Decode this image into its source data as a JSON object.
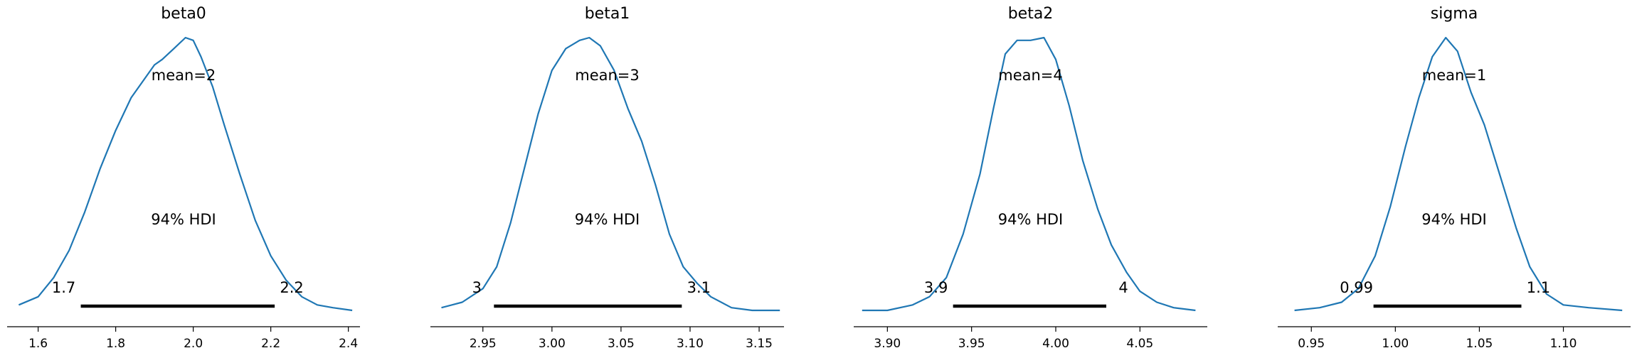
{
  "chart_data": [
    {
      "type": "line",
      "subtype": "posterior-density",
      "title": "beta0",
      "mean_label": "mean=2",
      "hdi_label": "94% HDI",
      "hdi": [
        1.71,
        2.21
      ],
      "hdi_labels": [
        "1.7",
        "2.2"
      ],
      "xlim": [
        1.52,
        2.43
      ],
      "xticks": [
        1.6,
        1.8,
        2.0,
        2.2,
        2.4
      ],
      "xtick_labels": [
        "1.6",
        "1.8",
        "2.0",
        "2.2",
        "2.4"
      ],
      "density": {
        "x": [
          1.55,
          1.6,
          1.64,
          1.68,
          1.72,
          1.76,
          1.8,
          1.84,
          1.88,
          1.9,
          1.92,
          1.95,
          1.98,
          2.0,
          2.02,
          2.05,
          2.08,
          2.12,
          2.16,
          2.2,
          2.24,
          2.28,
          2.32,
          2.36,
          2.41
        ],
        "y": [
          0.02,
          0.05,
          0.12,
          0.22,
          0.36,
          0.52,
          0.66,
          0.78,
          0.86,
          0.9,
          0.92,
          0.96,
          1.0,
          0.99,
          0.93,
          0.82,
          0.68,
          0.5,
          0.33,
          0.2,
          0.11,
          0.05,
          0.02,
          0.01,
          0.0
        ]
      }
    },
    {
      "type": "line",
      "subtype": "posterior-density",
      "title": "beta1",
      "mean_label": "mean=3",
      "hdi_label": "94% HDI",
      "hdi": [
        2.958,
        3.094
      ],
      "hdi_labels": [
        "3",
        "3.1"
      ],
      "xlim": [
        2.912,
        3.168
      ],
      "xticks": [
        2.95,
        3.0,
        3.05,
        3.1,
        3.15
      ],
      "xtick_labels": [
        "2.95",
        "3.00",
        "3.05",
        "3.10",
        "3.15"
      ],
      "density": {
        "x": [
          2.92,
          2.935,
          2.95,
          2.96,
          2.97,
          2.98,
          2.99,
          3.0,
          3.01,
          3.02,
          3.027,
          3.035,
          3.045,
          3.055,
          3.065,
          3.075,
          3.085,
          3.095,
          3.105,
          3.115,
          3.13,
          3.145,
          3.165
        ],
        "y": [
          0.01,
          0.03,
          0.08,
          0.16,
          0.32,
          0.52,
          0.72,
          0.88,
          0.96,
          0.99,
          1.0,
          0.97,
          0.88,
          0.74,
          0.62,
          0.46,
          0.28,
          0.16,
          0.1,
          0.05,
          0.01,
          0.0,
          0.0
        ]
      }
    },
    {
      "type": "line",
      "subtype": "posterior-density",
      "title": "beta2",
      "mean_label": "mean=4",
      "hdi_label": "94% HDI",
      "hdi": [
        3.939,
        4.03
      ],
      "hdi_labels": [
        "3.9",
        "4"
      ],
      "xlim": [
        3.88,
        4.09
      ],
      "xticks": [
        3.9,
        3.95,
        4.0,
        4.05
      ],
      "xtick_labels": [
        "3.90",
        "3.95",
        "4.00",
        "4.05"
      ],
      "density": {
        "x": [
          3.885,
          3.9,
          3.915,
          3.925,
          3.935,
          3.945,
          3.955,
          3.963,
          3.97,
          3.977,
          3.985,
          3.993,
          4.0,
          4.008,
          4.016,
          4.025,
          4.033,
          4.042,
          4.05,
          4.06,
          4.07,
          4.083
        ],
        "y": [
          0.0,
          0.0,
          0.02,
          0.05,
          0.12,
          0.28,
          0.5,
          0.74,
          0.94,
          0.99,
          0.99,
          1.0,
          0.92,
          0.75,
          0.55,
          0.37,
          0.24,
          0.14,
          0.07,
          0.03,
          0.01,
          0.0
        ]
      }
    },
    {
      "type": "line",
      "subtype": "posterior-density",
      "title": "sigma",
      "mean_label": "mean=1",
      "hdi_label": "94% HDI",
      "hdi": [
        0.987,
        1.075
      ],
      "hdi_labels": [
        "0.99",
        "1.1"
      ],
      "xlim": [
        0.93,
        1.14
      ],
      "xticks": [
        0.95,
        1.0,
        1.05,
        1.1
      ],
      "xtick_labels": [
        "0.95",
        "1.00",
        "1.05",
        "1.10"
      ],
      "density": {
        "x": [
          0.94,
          0.955,
          0.968,
          0.978,
          0.988,
          0.997,
          1.006,
          1.014,
          1.022,
          1.03,
          1.037,
          1.045,
          1.053,
          1.062,
          1.072,
          1.08,
          1.09,
          1.1,
          1.115,
          1.135
        ],
        "y": [
          0.0,
          0.01,
          0.03,
          0.08,
          0.2,
          0.38,
          0.6,
          0.78,
          0.93,
          1.0,
          0.95,
          0.8,
          0.68,
          0.5,
          0.3,
          0.16,
          0.06,
          0.02,
          0.01,
          0.0
        ]
      }
    }
  ]
}
